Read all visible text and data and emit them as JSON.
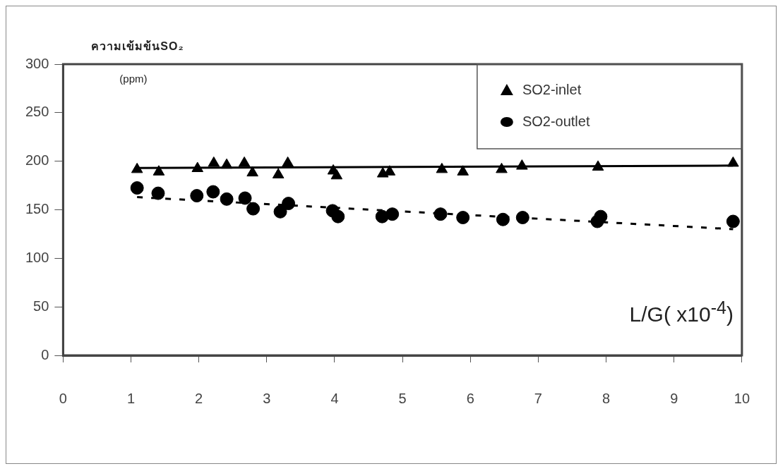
{
  "chart_data": {
    "type": "scatter",
    "ylabel": "ความเข้มข้นSO₂",
    "xlabel": "L/G( x10$^{-4}$)",
    "annotations": [
      "(ppm)"
    ],
    "xlim": [
      0,
      10
    ],
    "xticks": [
      0,
      1,
      2,
      3,
      4,
      5,
      6,
      7,
      8,
      9,
      10
    ],
    "ylim": [
      0,
      300
    ],
    "yticks": [
      0,
      50,
      100,
      150,
      200,
      250,
      300
    ],
    "grid": false,
    "legend": "top right",
    "series": [
      {
        "name": "SO2-inlet",
        "type": "scatter",
        "marker": "triangle",
        "color": "#000000",
        "x": [
          1.09,
          1.41,
          1.98,
          2.22,
          2.41,
          2.67,
          2.79,
          3.17,
          3.31,
          3.98,
          4.03,
          4.71,
          4.81,
          5.58,
          5.89,
          6.46,
          6.76,
          7.88,
          9.87
        ],
        "values": [
          191.5,
          189,
          192.5,
          198,
          196,
          198,
          188,
          186,
          198,
          190,
          185,
          187,
          189,
          191.5,
          189,
          191.5,
          195,
          194,
          198
        ]
      },
      {
        "name": "SO2-outlet",
        "type": "scatter",
        "marker": "circle",
        "color": "#000000",
        "x": [
          1.09,
          1.4,
          1.97,
          2.21,
          2.41,
          2.68,
          2.8,
          3.2,
          3.32,
          3.97,
          4.05,
          4.7,
          4.85,
          5.56,
          5.89,
          6.48,
          6.77,
          7.87,
          7.92,
          9.87
        ],
        "values": [
          172.5,
          167,
          164.5,
          168.5,
          161,
          162,
          151,
          148,
          156.5,
          149,
          143,
          143,
          145.5,
          145.5,
          142,
          140,
          142,
          138,
          143,
          138
        ]
      },
      {
        "type": "line",
        "marker": "none",
        "line_style": "solid",
        "color": "#000000",
        "x": [
          1.09,
          9.87
        ],
        "values": [
          193,
          195.5
        ]
      },
      {
        "type": "line",
        "marker": "none",
        "line_style": "dashed",
        "color": "#000000",
        "x": [
          1.09,
          9.87
        ],
        "values": [
          163,
          130
        ]
      }
    ]
  }
}
